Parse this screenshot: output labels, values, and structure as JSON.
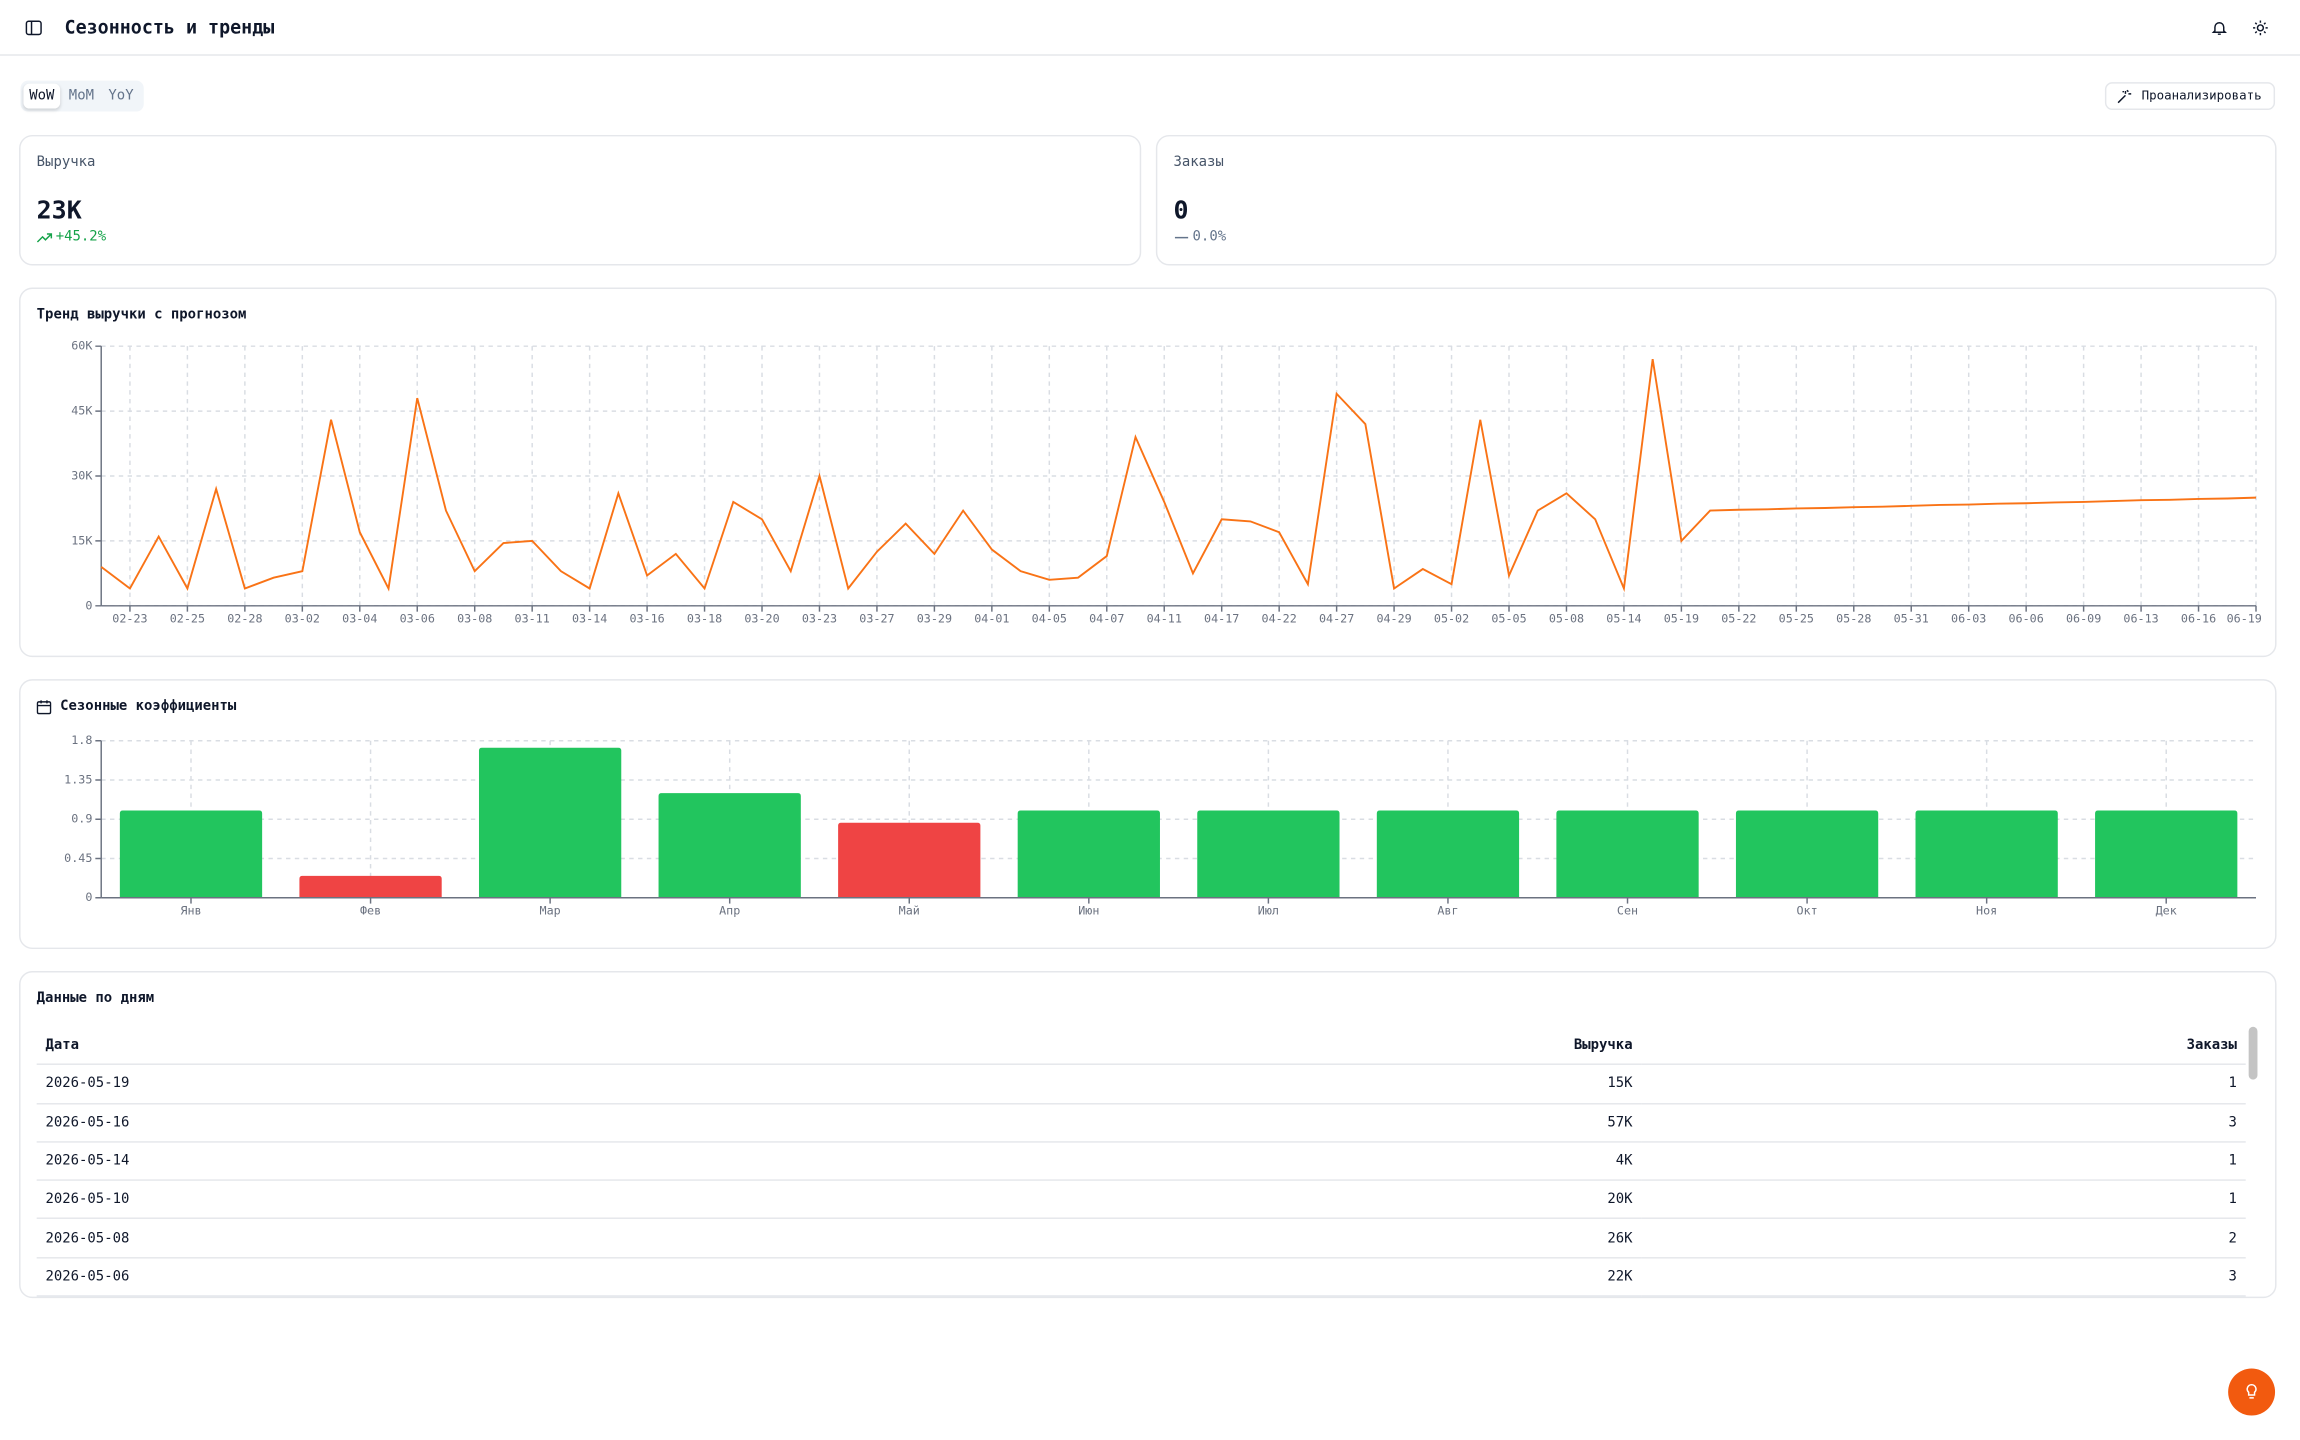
{
  "header": {
    "title": "Сезонность и тренды"
  },
  "tabs": [
    "WoW",
    "MoM",
    "YoY"
  ],
  "analyze_button": "Проанализировать",
  "kpis": [
    {
      "label": "Выручка",
      "value": "23K",
      "change": "+45.2%"
    },
    {
      "label": "Заказы",
      "value": "0",
      "change": "0.0%"
    }
  ],
  "chart_data": [
    {
      "type": "line",
      "title": "Тренд выручки с прогнозом",
      "color": "#f97316",
      "categories": [
        null,
        "02-23",
        null,
        "02-25",
        null,
        "02-28",
        null,
        "03-02",
        null,
        "03-04",
        null,
        "03-06",
        null,
        "03-08",
        null,
        "03-11",
        null,
        "03-14",
        null,
        "03-16",
        null,
        "03-18",
        null,
        "03-20",
        null,
        "03-23",
        null,
        "03-27",
        null,
        "03-29",
        null,
        "04-01",
        null,
        "04-05",
        null,
        "04-07",
        null,
        "04-11",
        null,
        "04-17",
        null,
        "04-22",
        null,
        "04-27",
        null,
        "04-29",
        null,
        "05-02",
        null,
        "05-05",
        null,
        "05-08",
        null,
        "05-14",
        null,
        "05-19",
        null,
        "05-22",
        null,
        "05-25",
        null,
        "05-28",
        null,
        "05-31",
        null,
        "06-03",
        null,
        "06-06",
        null,
        "06-09",
        null,
        "06-13",
        null,
        "06-16",
        null,
        "06-19"
      ],
      "values": [
        9000,
        4000,
        16000,
        4000,
        27000,
        4000,
        6500,
        8000,
        43000,
        17000,
        4000,
        48000,
        22000,
        8000,
        14500,
        15000,
        8000,
        4000,
        26000,
        7000,
        12000,
        4000,
        24000,
        20000,
        8000,
        30000,
        4000,
        12500,
        19000,
        12000,
        22000,
        13000,
        8000,
        6000,
        6500,
        11500,
        39000,
        24000,
        7500,
        20000,
        19500,
        17000,
        5000,
        49000,
        42000,
        4000,
        8500,
        5000,
        43000,
        7000,
        22000,
        26000,
        20000,
        4000,
        57000,
        15000,
        22000,
        22200,
        22300,
        22500,
        22600,
        22800,
        22900,
        23100,
        23300,
        23400,
        23600,
        23700,
        23900,
        24000,
        24200,
        24400,
        24500,
        24700,
        24800,
        25000
      ],
      "ylim": [
        0,
        60000
      ],
      "yticks": [
        0,
        {
          "value": 15000,
          "label": "15K"
        },
        {
          "value": 30000,
          "label": "30K"
        },
        {
          "value": 45000,
          "label": "45K"
        },
        {
          "value": 60000,
          "label": "60K"
        }
      ],
      "grid": true
    },
    {
      "type": "bar",
      "title": "Сезонные коэффициенты",
      "categories": [
        "Янв",
        "Фев",
        "Мар",
        "Апр",
        "Май",
        "Июн",
        "Июл",
        "Авг",
        "Сен",
        "Окт",
        "Ноя",
        "Дек"
      ],
      "values": [
        1.0,
        0.25,
        1.72,
        1.2,
        0.86,
        1.0,
        1.0,
        1.0,
        1.0,
        1.0,
        1.0,
        1.0
      ],
      "colors": [
        "#22c55e",
        "#ef4444",
        "#22c55e",
        "#22c55e",
        "#ef4444",
        "#22c55e",
        "#22c55e",
        "#22c55e",
        "#22c55e",
        "#22c55e",
        "#22c55e",
        "#22c55e"
      ],
      "ylim": [
        0,
        1.8
      ],
      "yticks": [
        0,
        0.45,
        0.9,
        1.35,
        1.8
      ],
      "grid": true
    }
  ],
  "table": {
    "title": "Данные по дням",
    "columns": [
      "Дата",
      "Выручка",
      "Заказы"
    ],
    "rows": [
      [
        "2026-05-19",
        "15K",
        1
      ],
      [
        "2026-05-16",
        "57K",
        3
      ],
      [
        "2026-05-14",
        "4K",
        1
      ],
      [
        "2026-05-10",
        "20K",
        1
      ],
      [
        "2026-05-08",
        "26K",
        2
      ],
      [
        "2026-05-06",
        "22K",
        3
      ]
    ]
  }
}
